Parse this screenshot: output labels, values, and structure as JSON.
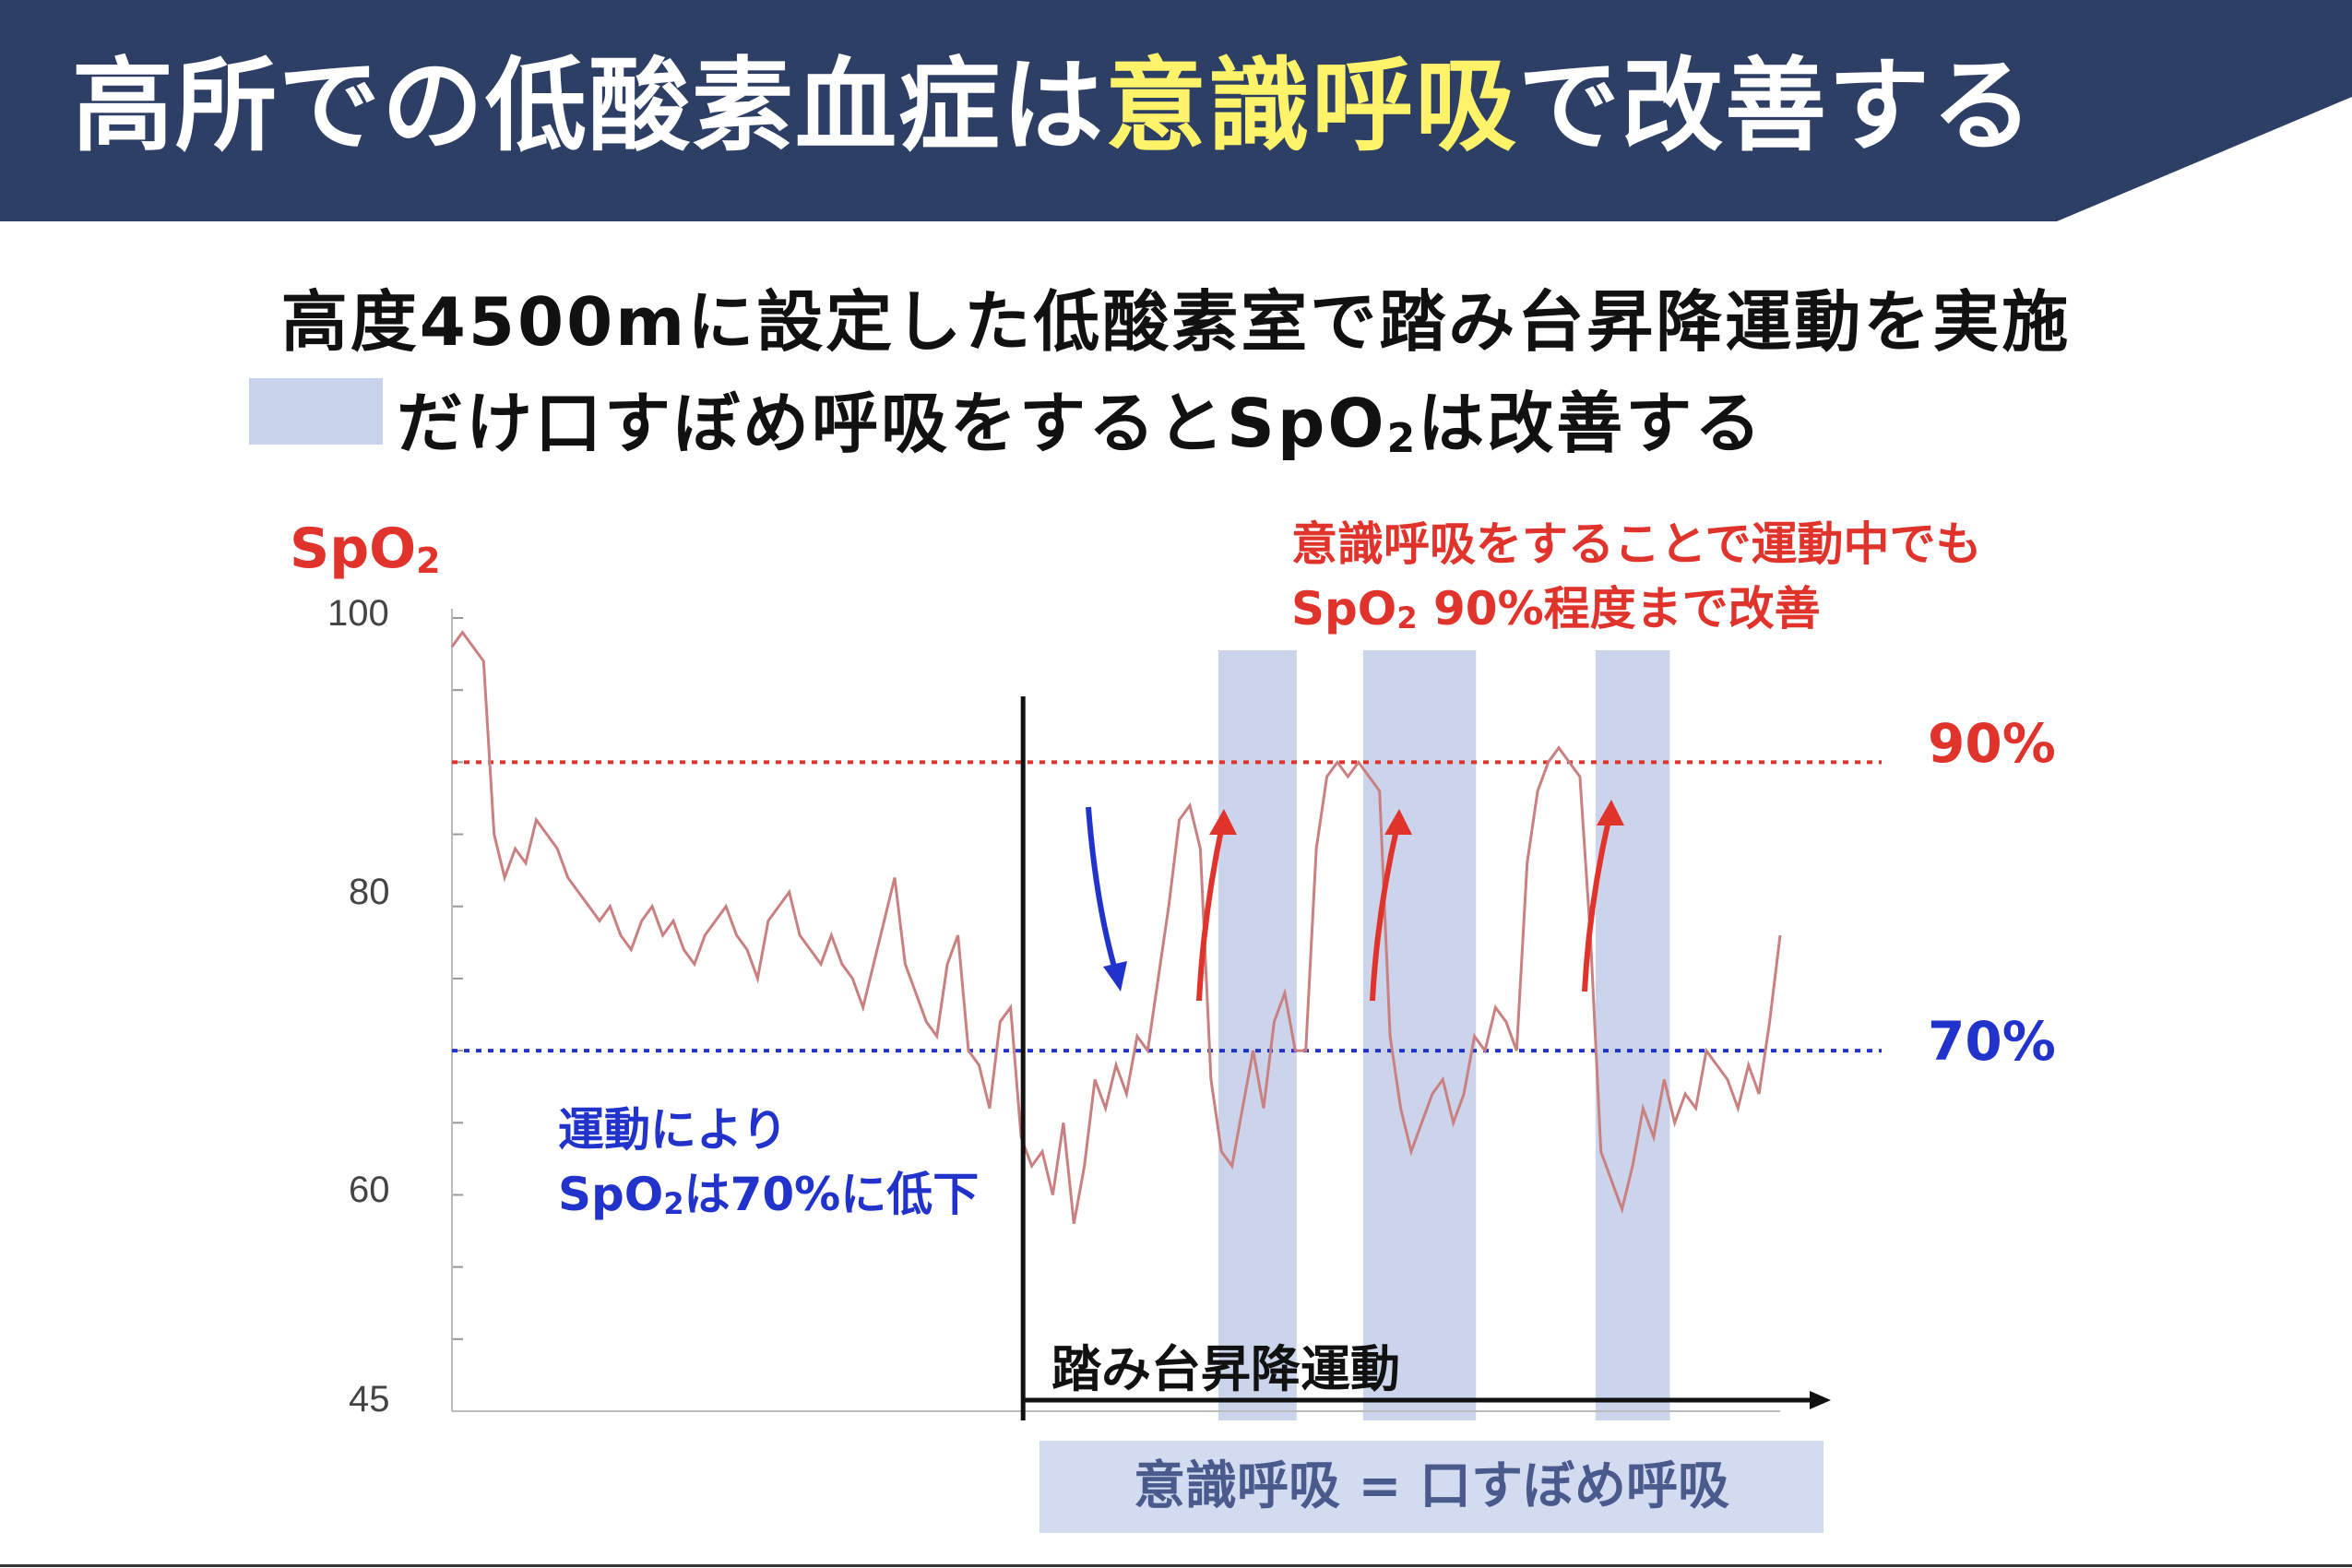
{
  "header": {
    "title_part1": "高所での低酸素血症は",
    "title_highlight": "意識呼吸",
    "title_part2": "で改善する",
    "bg_color": "#2e3f66",
    "highlight_color": "#fff36a"
  },
  "subtitle_line1": "高度4500mに設定した低酸素室で踏み台昇降運動を実施",
  "subtitle_line2_part1": "だけ口すぼめ呼吸をするとSpO",
  "subtitle_line2_sub": "2",
  "subtitle_line2_part2": "は改善する",
  "annotations": {
    "top_right_line1": "意識呼吸をすることで運動中でも",
    "top_right_line2_a": "SpO",
    "top_right_line2_sub": "2",
    "top_right_line2_b": " 90%程度まで改善",
    "left_line1": "運動により",
    "left_line2_a": "SpO",
    "left_line2_sub": "2",
    "left_line2_b": "は70%に低下",
    "exercise_label": "踏み台昇降運動",
    "bottom_box": "意識呼吸 = 口すぼめ呼吸"
  },
  "chart_data": {
    "type": "line",
    "ylabel_a": "SpO",
    "ylabel_sub": "2",
    "yticks": [
      "100",
      "80",
      "60",
      "45"
    ],
    "ylim": [
      45,
      100
    ],
    "reference_lines": [
      {
        "label": "90%",
        "value": 90,
        "color": "#e0332c"
      },
      {
        "label": "70%",
        "value": 70,
        "color": "#2233cc"
      }
    ],
    "exercise_start_fraction": 0.43,
    "breathing_windows_fraction": [
      [
        0.577,
        0.636
      ],
      [
        0.686,
        0.771
      ],
      [
        0.861,
        0.917
      ]
    ],
    "series": [
      {
        "color": "#c98080",
        "values": [
          98,
          99,
          98,
          97,
          85,
          82,
          84,
          83,
          86,
          85,
          84,
          82,
          81,
          80,
          79,
          80,
          78,
          77,
          79,
          80,
          78,
          79,
          77,
          76,
          78,
          79,
          80,
          78,
          77,
          75,
          79,
          80,
          81,
          78,
          77,
          76,
          78,
          76,
          75,
          73,
          76,
          79,
          82,
          76,
          74,
          72,
          71,
          76,
          78,
          70,
          69,
          66,
          72,
          73,
          64,
          62,
          63,
          60,
          65,
          58,
          62,
          68,
          66,
          69,
          67,
          71,
          70,
          75,
          80,
          86,
          87,
          84,
          68,
          63,
          62,
          66,
          70,
          66,
          72,
          74,
          70,
          70,
          84,
          89,
          90,
          89,
          90,
          89,
          88,
          71,
          66,
          63,
          65,
          67,
          68,
          65,
          67,
          71,
          70,
          73,
          72,
          70,
          83,
          88,
          90,
          91,
          90,
          89,
          78,
          63,
          61,
          59,
          62,
          66,
          64,
          68,
          65,
          67,
          66,
          70,
          69,
          68,
          66,
          69,
          67,
          72,
          78
        ]
      }
    ]
  },
  "colors": {
    "shade": "#c8d2ea",
    "trace": "#c98080",
    "red": "#e0332c",
    "blue": "#2233cc"
  }
}
